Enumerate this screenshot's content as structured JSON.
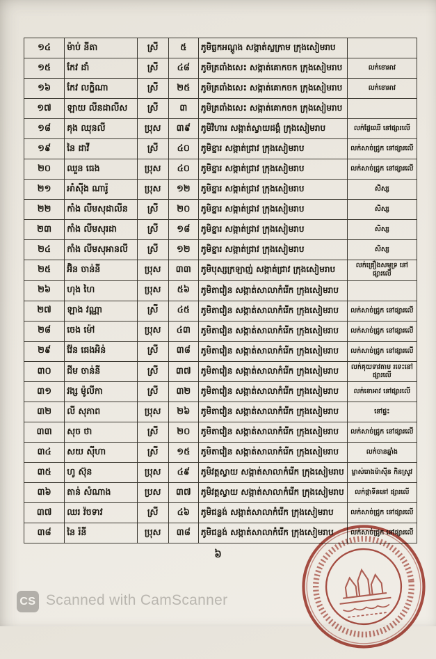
{
  "page": {
    "page_number": "៦"
  },
  "table": {
    "rows": [
      {
        "no": "១៤",
        "name": "ម៉ាប់ នីតា",
        "gender": "ស្រី",
        "age": "៥",
        "address": "ភូមិធ្លកអណ្ដូង សង្កាត់ស្លក្រាម ក្រុងសៀមរាប",
        "occupation": ""
      },
      {
        "no": "១៥",
        "name": "កែវ ដាំ",
        "gender": "ស្រី",
        "age": "៤៨",
        "address": "ភូមិត្រពាំងសេះ សង្កាត់គោកចក ក្រុងសៀមរាប",
        "occupation": "លក់ខោអាវ"
      },
      {
        "no": "១៦",
        "name": "កែវ លក្ខិណា",
        "gender": "ស្រី",
        "age": "២៥",
        "address": "ភូមិត្រពាំងសេះ សង្កាត់គោកចក ក្រុងសៀមរាប",
        "occupation": "លក់ខោអាវ"
      },
      {
        "no": "១៧",
        "name": "ឡាយ លីនដាលីស",
        "gender": "ស្រី",
        "age": "៣",
        "address": "ភូមិត្រពាំងសេះ សង្កាត់គោកចក ក្រុងសៀមរាប",
        "occupation": ""
      },
      {
        "no": "១៨",
        "name": "គុង ឈុនលី",
        "gender": "ប្រុស",
        "age": "៣៩",
        "address": "ភូមិវិហារ សង្កាត់ស្វាយដង្គំ ក្រុងសៀមរាប",
        "occupation": "លក់ផ្លែឈើ នៅផ្សារលើ"
      },
      {
        "no": "១៩",
        "name": "នៃ ដាវី",
        "gender": "ស្រី",
        "age": "៤០",
        "address": "ភូមិខ្នារ សង្កាត់ជ្រាវ ក្រុងសៀមរាប",
        "occupation": "លក់សាច់ជ្រូក នៅផ្សារលើ"
      },
      {
        "no": "២០",
        "name": "ឈួន ធេង",
        "gender": "ប្រុស",
        "age": "៤០",
        "address": "ភូមិខ្នារ សង្កាត់ជ្រាវ ក្រុងសៀមរាប",
        "occupation": "លក់សាច់ជ្រូក នៅផ្សារលើ"
      },
      {
        "no": "២១",
        "name": "អាំស៊ីង ណារ៉ូ",
        "gender": "ប្រុស",
        "age": "១២",
        "address": "ភូមិខ្នារ សង្កាត់ជ្រាវ ក្រុងសៀមរាប",
        "occupation": "សិស្ស"
      },
      {
        "no": "២២",
        "name": "កាំង លីមសុដាលីន",
        "gender": "ស្រី",
        "age": "២០",
        "address": "ភូមិខ្នារ សង្កាត់ជ្រាវ ក្រុងសៀមរាប",
        "occupation": "សិស្ស"
      },
      {
        "no": "២៣",
        "name": "កាំង លីមសុរដា",
        "gender": "ស្រី",
        "age": "១៨",
        "address": "ភូមិខ្នារ សង្កាត់ជ្រាវ ក្រុងសៀមរាប",
        "occupation": "សិស្ស"
      },
      {
        "no": "២៤",
        "name": "កាំង លីមសុអានលី",
        "gender": "ស្រី",
        "age": "១២",
        "address": "ភូមិខ្នារ សង្កាត់ជ្រាវ ក្រុងសៀមរាប",
        "occupation": "សិស្ស"
      },
      {
        "no": "២៥",
        "name": "អ៊ិន ចាន់នី",
        "gender": "ប្រុស",
        "age": "៣៣",
        "address": "ភូមិបុស្សក្រឡាញ់ សង្កាត់ជ្រាវ ក្រុងសៀមរាប",
        "occupation": "លក់គ្រឿងសមុទ្រ នៅផ្សារលើ"
      },
      {
        "no": "២៦",
        "name": "ហុង ហៃ",
        "gender": "ប្រុស",
        "age": "៥៦",
        "address": "ភូមិតាវៀន សង្កាត់សាលាកំរើក ក្រុងសៀមរាប",
        "occupation": ""
      },
      {
        "no": "២៧",
        "name": "ឡាង វណ្ណា",
        "gender": "ស្រី",
        "age": "៤៥",
        "address": "ភូមិតាវៀន សង្កាត់សាលាកំរើក ក្រុងសៀមរាប",
        "occupation": "លក់សាច់ជ្រូក នៅផ្សារលើ"
      },
      {
        "no": "២៨",
        "name": "ចេង ម៉ៅ",
        "gender": "ប្រុស",
        "age": "៤៣",
        "address": "ភូមិតាវៀន សង្កាត់សាលាកំរើក ក្រុងសៀមរាប",
        "occupation": "លក់សាច់ជ្រូក នៅផ្សារលើ"
      },
      {
        "no": "២៩",
        "name": "វ៉ែន ធេងអិន់",
        "gender": "ស្រី",
        "age": "៣៨",
        "address": "ភូមិតាវៀន សង្កាត់សាលាកំរើក ក្រុងសៀមរាប",
        "occupation": "លក់សាច់ជ្រូក នៅផ្សារលើ"
      },
      {
        "no": "៣០",
        "name": "ជីម ចាន់នី",
        "gender": "ស្រី",
        "age": "៣៧",
        "address": "ភូមិតាវៀន សង្កាត់សាលាកំរើក ក្រុងសៀមរាប",
        "occupation": "លក់គុយទាវតាម រទេះនៅផ្សារលើ"
      },
      {
        "no": "៣១",
        "name": "វង្ស ម៉ូលីកា",
        "gender": "ស្រី",
        "age": "៣២",
        "address": "ភូមិតាវៀន សង្កាត់សាលាកំរើក ក្រុងសៀមរាប",
        "occupation": "លក់ខោអាវ នៅផ្សារលើ"
      },
      {
        "no": "៣២",
        "name": "លី សុភាព",
        "gender": "ប្រុស",
        "age": "២៦",
        "address": "ភូមិតាវៀន សង្កាត់សាលាកំរើក ក្រុងសៀមរាប",
        "occupation": "នៅផ្ទះ"
      },
      {
        "no": "៣៣",
        "name": "សុច ថា",
        "gender": "ស្រី",
        "age": "២០",
        "address": "ភូមិតាវៀន សង្កាត់សាលាកំរើក ក្រុងសៀមរាប",
        "occupation": "លក់សាច់ជ្រូក នៅផ្សារលើ"
      },
      {
        "no": "៣៤",
        "name": "សយ ស៊ីហា",
        "gender": "ស្រី",
        "age": "១៥",
        "address": "ភូមិតាវៀន សង្កាត់សាលាកំរើក ក្រុងសៀមរាប",
        "occupation": "លក់ចានឆ្នាំង"
      },
      {
        "no": "៣៥",
        "name": "ហូ ស៊ុន",
        "gender": "ប្រុស",
        "age": "៤៩",
        "address": "ភូមិវត្តស្វាយ សង្កាត់សាលាកំរើក ក្រុងសៀមរាប",
        "occupation": "ម្ចាស់រោងម៉ាស៊ីន កិនស្រូវ"
      },
      {
        "no": "៣៦",
        "name": "តាន់ សំណាង",
        "gender": "ប្រស",
        "age": "៣៧",
        "address": "ភូមិវត្តស្វាយ សង្កាត់សាលាកំរើក ក្រុងសៀមរាប",
        "occupation": "លក់ផ្កាទីននៅ ផ្សារលើ"
      },
      {
        "no": "៣៧",
        "name": "ឈរ វ៉ចទាវ",
        "gender": "ស្រី",
        "age": "៤៦",
        "address": "ភូមិជន្លង់ សង្កាត់សាលាកំរើក ក្រុងសៀមរាប",
        "occupation": "លក់សាច់ជ្រូក នៅផ្សារលើ"
      },
      {
        "no": "៣៨",
        "name": "នៃ រ៉នី",
        "gender": "ប្រុស",
        "age": "៣៨",
        "address": "ភូមិជន្លង់ សង្កាត់សាលាកំរើក ក្រុងសៀមរាប",
        "occupation": "លក់សាច់ជ្រូក នៅផ្សារលើ"
      }
    ]
  },
  "stamp": {
    "color": "#9e2b1f"
  },
  "footer": {
    "logo_text": "CS",
    "text": "Scanned with CamScanner",
    "text_color": "#b9b6af"
  }
}
